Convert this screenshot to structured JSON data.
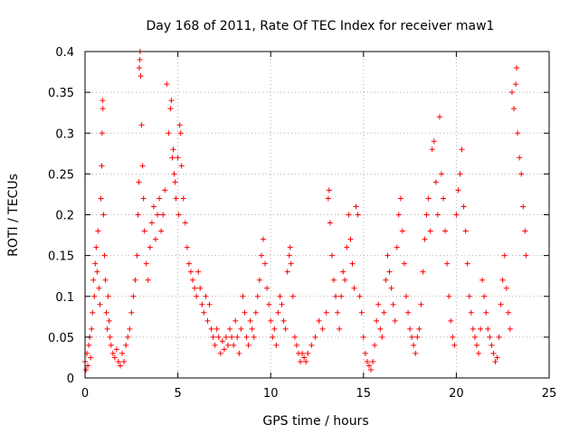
{
  "chart_data": {
    "type": "scatter",
    "title": "Day 168 of 2011, Rate Of TEC Index for receiver maw1",
    "xlabel": "GPS time / hours",
    "ylabel": "ROTI / TECUs",
    "xlim": [
      0,
      25
    ],
    "ylim": [
      0,
      0.4
    ],
    "xticks": [
      0,
      5,
      10,
      15,
      20,
      25
    ],
    "yticks": [
      0,
      0.05,
      0.1,
      0.15,
      0.2,
      0.25,
      0.3,
      0.35,
      0.4
    ],
    "grid": true,
    "marker": "+",
    "color": "#ff0000",
    "points": [
      [
        0.0,
        0.02
      ],
      [
        0.05,
        0.01
      ],
      [
        0.1,
        0.03
      ],
      [
        0.15,
        0.015
      ],
      [
        0.2,
        0.04
      ],
      [
        0.25,
        0.05
      ],
      [
        0.3,
        0.025
      ],
      [
        0.35,
        0.06
      ],
      [
        0.4,
        0.08
      ],
      [
        0.45,
        0.12
      ],
      [
        0.5,
        0.1
      ],
      [
        0.55,
        0.14
      ],
      [
        0.6,
        0.16
      ],
      [
        0.65,
        0.13
      ],
      [
        0.7,
        0.18
      ],
      [
        0.75,
        0.11
      ],
      [
        0.8,
        0.09
      ],
      [
        0.85,
        0.22
      ],
      [
        0.9,
        0.26
      ],
      [
        0.92,
        0.3
      ],
      [
        0.94,
        0.34
      ],
      [
        0.96,
        0.33
      ],
      [
        1.0,
        0.2
      ],
      [
        1.05,
        0.15
      ],
      [
        1.1,
        0.12
      ],
      [
        1.15,
        0.08
      ],
      [
        1.2,
        0.06
      ],
      [
        1.25,
        0.1
      ],
      [
        1.3,
        0.07
      ],
      [
        1.35,
        0.05
      ],
      [
        1.4,
        0.04
      ],
      [
        1.5,
        0.03
      ],
      [
        1.6,
        0.025
      ],
      [
        1.7,
        0.035
      ],
      [
        1.8,
        0.02
      ],
      [
        1.9,
        0.015
      ],
      [
        2.0,
        0.03
      ],
      [
        2.1,
        0.02
      ],
      [
        2.2,
        0.04
      ],
      [
        2.3,
        0.05
      ],
      [
        2.4,
        0.06
      ],
      [
        2.5,
        0.08
      ],
      [
        2.6,
        0.1
      ],
      [
        2.7,
        0.12
      ],
      [
        2.8,
        0.15
      ],
      [
        2.85,
        0.2
      ],
      [
        2.9,
        0.24
      ],
      [
        2.92,
        0.38
      ],
      [
        2.95,
        0.39
      ],
      [
        2.97,
        0.4
      ],
      [
        3.0,
        0.37
      ],
      [
        3.05,
        0.31
      ],
      [
        3.1,
        0.26
      ],
      [
        3.15,
        0.22
      ],
      [
        3.2,
        0.18
      ],
      [
        3.3,
        0.14
      ],
      [
        3.4,
        0.12
      ],
      [
        3.5,
        0.16
      ],
      [
        3.6,
        0.19
      ],
      [
        3.7,
        0.21
      ],
      [
        3.8,
        0.17
      ],
      [
        3.9,
        0.2
      ],
      [
        4.0,
        0.22
      ],
      [
        4.1,
        0.18
      ],
      [
        4.2,
        0.2
      ],
      [
        4.3,
        0.23
      ],
      [
        4.4,
        0.36
      ],
      [
        4.5,
        0.3
      ],
      [
        4.6,
        0.33
      ],
      [
        4.65,
        0.34
      ],
      [
        4.7,
        0.27
      ],
      [
        4.75,
        0.28
      ],
      [
        4.8,
        0.25
      ],
      [
        4.85,
        0.24
      ],
      [
        4.9,
        0.22
      ],
      [
        5.0,
        0.27
      ],
      [
        5.05,
        0.2
      ],
      [
        5.1,
        0.31
      ],
      [
        5.15,
        0.3
      ],
      [
        5.2,
        0.26
      ],
      [
        5.3,
        0.22
      ],
      [
        5.4,
        0.19
      ],
      [
        5.5,
        0.16
      ],
      [
        5.6,
        0.14
      ],
      [
        5.7,
        0.13
      ],
      [
        5.8,
        0.12
      ],
      [
        5.9,
        0.11
      ],
      [
        6.0,
        0.1
      ],
      [
        6.1,
        0.13
      ],
      [
        6.2,
        0.11
      ],
      [
        6.3,
        0.09
      ],
      [
        6.4,
        0.08
      ],
      [
        6.5,
        0.1
      ],
      [
        6.6,
        0.07
      ],
      [
        6.7,
        0.09
      ],
      [
        6.8,
        0.06
      ],
      [
        6.9,
        0.05
      ],
      [
        7.0,
        0.04
      ],
      [
        7.1,
        0.06
      ],
      [
        7.2,
        0.05
      ],
      [
        7.3,
        0.03
      ],
      [
        7.4,
        0.045
      ],
      [
        7.5,
        0.035
      ],
      [
        7.6,
        0.05
      ],
      [
        7.7,
        0.04
      ],
      [
        7.8,
        0.06
      ],
      [
        7.9,
        0.05
      ],
      [
        8.0,
        0.04
      ],
      [
        8.1,
        0.07
      ],
      [
        8.2,
        0.05
      ],
      [
        8.3,
        0.03
      ],
      [
        8.4,
        0.06
      ],
      [
        8.5,
        0.1
      ],
      [
        8.6,
        0.08
      ],
      [
        8.7,
        0.05
      ],
      [
        8.8,
        0.04
      ],
      [
        8.9,
        0.07
      ],
      [
        9.0,
        0.06
      ],
      [
        9.1,
        0.05
      ],
      [
        9.2,
        0.08
      ],
      [
        9.3,
        0.1
      ],
      [
        9.4,
        0.12
      ],
      [
        9.5,
        0.15
      ],
      [
        9.6,
        0.17
      ],
      [
        9.7,
        0.14
      ],
      [
        9.8,
        0.11
      ],
      [
        9.9,
        0.09
      ],
      [
        10.0,
        0.07
      ],
      [
        10.1,
        0.05
      ],
      [
        10.2,
        0.06
      ],
      [
        10.3,
        0.04
      ],
      [
        10.4,
        0.08
      ],
      [
        10.5,
        0.1
      ],
      [
        10.6,
        0.09
      ],
      [
        10.7,
        0.07
      ],
      [
        10.8,
        0.06
      ],
      [
        10.9,
        0.13
      ],
      [
        11.0,
        0.15
      ],
      [
        11.05,
        0.16
      ],
      [
        11.1,
        0.14
      ],
      [
        11.2,
        0.1
      ],
      [
        11.3,
        0.05
      ],
      [
        11.4,
        0.04
      ],
      [
        11.5,
        0.03
      ],
      [
        11.6,
        0.02
      ],
      [
        11.7,
        0.03
      ],
      [
        11.8,
        0.025
      ],
      [
        11.9,
        0.02
      ],
      [
        12.0,
        0.03
      ],
      [
        12.2,
        0.04
      ],
      [
        12.4,
        0.05
      ],
      [
        12.6,
        0.07
      ],
      [
        12.8,
        0.06
      ],
      [
        13.0,
        0.08
      ],
      [
        13.1,
        0.22
      ],
      [
        13.15,
        0.23
      ],
      [
        13.2,
        0.19
      ],
      [
        13.3,
        0.15
      ],
      [
        13.4,
        0.12
      ],
      [
        13.5,
        0.1
      ],
      [
        13.6,
        0.08
      ],
      [
        13.7,
        0.06
      ],
      [
        13.8,
        0.1
      ],
      [
        13.9,
        0.13
      ],
      [
        14.0,
        0.12
      ],
      [
        14.1,
        0.16
      ],
      [
        14.2,
        0.2
      ],
      [
        14.3,
        0.17
      ],
      [
        14.4,
        0.14
      ],
      [
        14.5,
        0.11
      ],
      [
        14.6,
        0.21
      ],
      [
        14.7,
        0.2
      ],
      [
        14.8,
        0.1
      ],
      [
        14.9,
        0.08
      ],
      [
        15.0,
        0.05
      ],
      [
        15.1,
        0.03
      ],
      [
        15.2,
        0.02
      ],
      [
        15.3,
        0.015
      ],
      [
        15.4,
        0.01
      ],
      [
        15.5,
        0.02
      ],
      [
        15.6,
        0.04
      ],
      [
        15.7,
        0.07
      ],
      [
        15.8,
        0.09
      ],
      [
        15.9,
        0.06
      ],
      [
        16.0,
        0.05
      ],
      [
        16.1,
        0.08
      ],
      [
        16.2,
        0.12
      ],
      [
        16.3,
        0.15
      ],
      [
        16.4,
        0.13
      ],
      [
        16.5,
        0.11
      ],
      [
        16.6,
        0.09
      ],
      [
        16.7,
        0.07
      ],
      [
        16.8,
        0.16
      ],
      [
        16.9,
        0.2
      ],
      [
        17.0,
        0.22
      ],
      [
        17.1,
        0.18
      ],
      [
        17.2,
        0.14
      ],
      [
        17.3,
        0.1
      ],
      [
        17.4,
        0.08
      ],
      [
        17.5,
        0.06
      ],
      [
        17.6,
        0.05
      ],
      [
        17.7,
        0.04
      ],
      [
        17.8,
        0.03
      ],
      [
        17.9,
        0.05
      ],
      [
        18.0,
        0.06
      ],
      [
        18.1,
        0.09
      ],
      [
        18.2,
        0.13
      ],
      [
        18.3,
        0.17
      ],
      [
        18.4,
        0.2
      ],
      [
        18.5,
        0.22
      ],
      [
        18.6,
        0.18
      ],
      [
        18.7,
        0.28
      ],
      [
        18.8,
        0.29
      ],
      [
        18.9,
        0.24
      ],
      [
        19.0,
        0.2
      ],
      [
        19.1,
        0.32
      ],
      [
        19.2,
        0.25
      ],
      [
        19.3,
        0.22
      ],
      [
        19.4,
        0.18
      ],
      [
        19.5,
        0.14
      ],
      [
        19.6,
        0.1
      ],
      [
        19.7,
        0.07
      ],
      [
        19.8,
        0.05
      ],
      [
        19.9,
        0.04
      ],
      [
        20.0,
        0.2
      ],
      [
        20.1,
        0.23
      ],
      [
        20.2,
        0.25
      ],
      [
        20.3,
        0.28
      ],
      [
        20.4,
        0.21
      ],
      [
        20.5,
        0.18
      ],
      [
        20.6,
        0.14
      ],
      [
        20.7,
        0.1
      ],
      [
        20.8,
        0.08
      ],
      [
        20.9,
        0.06
      ],
      [
        21.0,
        0.05
      ],
      [
        21.1,
        0.04
      ],
      [
        21.2,
        0.03
      ],
      [
        21.3,
        0.06
      ],
      [
        21.4,
        0.12
      ],
      [
        21.5,
        0.1
      ],
      [
        21.6,
        0.08
      ],
      [
        21.7,
        0.06
      ],
      [
        21.8,
        0.05
      ],
      [
        21.9,
        0.04
      ],
      [
        22.0,
        0.03
      ],
      [
        22.1,
        0.02
      ],
      [
        22.2,
        0.025
      ],
      [
        22.3,
        0.05
      ],
      [
        22.4,
        0.09
      ],
      [
        22.5,
        0.12
      ],
      [
        22.6,
        0.15
      ],
      [
        22.7,
        0.11
      ],
      [
        22.8,
        0.08
      ],
      [
        22.9,
        0.06
      ],
      [
        23.0,
        0.35
      ],
      [
        23.1,
        0.33
      ],
      [
        23.2,
        0.36
      ],
      [
        23.25,
        0.38
      ],
      [
        23.3,
        0.3
      ],
      [
        23.4,
        0.27
      ],
      [
        23.5,
        0.25
      ],
      [
        23.6,
        0.21
      ],
      [
        23.7,
        0.18
      ],
      [
        23.75,
        0.15
      ]
    ]
  }
}
